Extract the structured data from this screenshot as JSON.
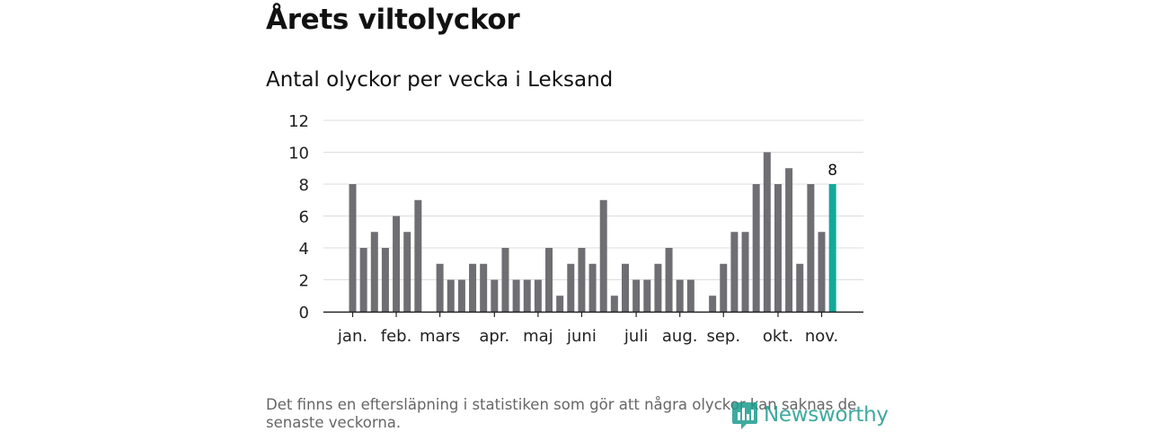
{
  "header": {
    "title": "Årets viltolyckor"
  },
  "chart_data": {
    "type": "bar",
    "title": "Antal olyckor per vecka i Leksand",
    "xlabel": "",
    "ylabel": "",
    "ylim": [
      0,
      12
    ],
    "yticks": [
      "0",
      "2",
      "4",
      "6",
      "8",
      "10",
      "12"
    ],
    "grid": true,
    "values": [
      8,
      4,
      5,
      4,
      6,
      5,
      7,
      null,
      3,
      2,
      2,
      3,
      3,
      2,
      4,
      2,
      2,
      2,
      4,
      1,
      3,
      4,
      3,
      7,
      1,
      3,
      2,
      2,
      3,
      4,
      2,
      2,
      null,
      1,
      3,
      5,
      5,
      8,
      10,
      8,
      9,
      3,
      8,
      5,
      8
    ],
    "highlight_index": 44,
    "highlight_label": "8",
    "month_labels": [
      {
        "label": "jan.",
        "week_index": 0
      },
      {
        "label": "feb.",
        "week_index": 4
      },
      {
        "label": "mars",
        "week_index": 8
      },
      {
        "label": "apr.",
        "week_index": 13
      },
      {
        "label": "maj",
        "week_index": 17
      },
      {
        "label": "juni",
        "week_index": 21
      },
      {
        "label": "juli",
        "week_index": 26
      },
      {
        "label": "aug.",
        "week_index": 30
      },
      {
        "label": "sep.",
        "week_index": 34
      },
      {
        "label": "okt.",
        "week_index": 39
      },
      {
        "label": "nov.",
        "week_index": 43
      }
    ],
    "colors": {
      "bar": "#6f6e73",
      "highlight": "#14a89a",
      "grid": "#dddddd",
      "axis": "#222222"
    }
  },
  "footer": {
    "note": "Det finns en eftersläpning i statistiken som gör att några olyckor kan saknas de senaste veckorna.",
    "brand": "Newsworthy"
  }
}
